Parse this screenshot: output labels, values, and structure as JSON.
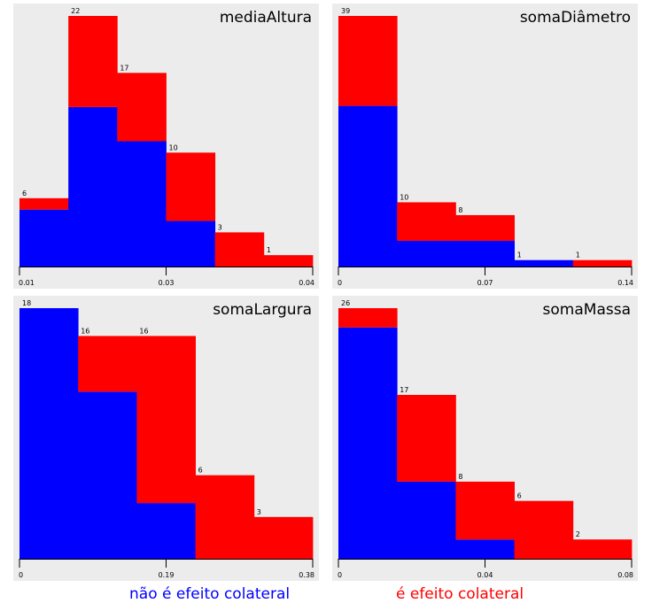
{
  "chart_data": [
    {
      "type": "bar",
      "stacked": true,
      "title": "mediaAltura",
      "tick_labels": [
        "0.01",
        "0.03",
        "0.04"
      ],
      "xlim": [
        0.01,
        0.04
      ],
      "ylim": [
        0,
        22
      ],
      "counts": [
        "6",
        "22",
        "17",
        "10",
        "3",
        "1"
      ],
      "series": [
        {
          "name": "não é efeito colateral",
          "color": "#0000ff",
          "values": [
            5,
            14,
            11,
            4,
            0,
            0
          ]
        },
        {
          "name": "é efeito colateral",
          "color": "#ff0000",
          "values": [
            1,
            8,
            6,
            6,
            3,
            1
          ]
        }
      ]
    },
    {
      "type": "bar",
      "stacked": true,
      "title": "somaDiâmetro",
      "tick_labels": [
        "0",
        "0.07",
        "0.14"
      ],
      "xlim": [
        0,
        0.14
      ],
      "ylim": [
        0,
        39
      ],
      "counts": [
        "39",
        "10",
        "8",
        "1",
        "1"
      ],
      "series": [
        {
          "name": "não é efeito colateral",
          "color": "#0000ff",
          "values": [
            25,
            4,
            4,
            1,
            0
          ]
        },
        {
          "name": "é efeito colateral",
          "color": "#ff0000",
          "values": [
            14,
            6,
            4,
            0,
            1
          ]
        }
      ]
    },
    {
      "type": "bar",
      "stacked": true,
      "title": "somaLargura",
      "tick_labels": [
        "0",
        "0.19",
        "0.38"
      ],
      "xlim": [
        0,
        0.38
      ],
      "ylim": [
        0,
        18
      ],
      "counts": [
        "18",
        "16",
        "16",
        "6",
        "3"
      ],
      "series": [
        {
          "name": "não é efeito colateral",
          "color": "#0000ff",
          "values": [
            18,
            12,
            4,
            0,
            0
          ]
        },
        {
          "name": "é efeito colateral",
          "color": "#ff0000",
          "values": [
            0,
            4,
            12,
            6,
            3
          ]
        }
      ]
    },
    {
      "type": "bar",
      "stacked": true,
      "title": "somaMassa",
      "tick_labels": [
        "0",
        "0.04",
        "0.08"
      ],
      "xlim": [
        0,
        0.08
      ],
      "ylim": [
        0,
        26
      ],
      "counts": [
        "26",
        "17",
        "8",
        "6",
        "2"
      ],
      "series": [
        {
          "name": "não é efeito colateral",
          "color": "#0000ff",
          "values": [
            24,
            8,
            2,
            0,
            0
          ]
        },
        {
          "name": "é efeito colateral",
          "color": "#ff0000",
          "values": [
            2,
            9,
            6,
            6,
            2
          ]
        }
      ]
    }
  ],
  "legend": {
    "left": {
      "text": "não é efeito colateral",
      "color": "#0000ff"
    },
    "right": {
      "text": "é efeito colateral",
      "color": "#ff0000"
    }
  }
}
